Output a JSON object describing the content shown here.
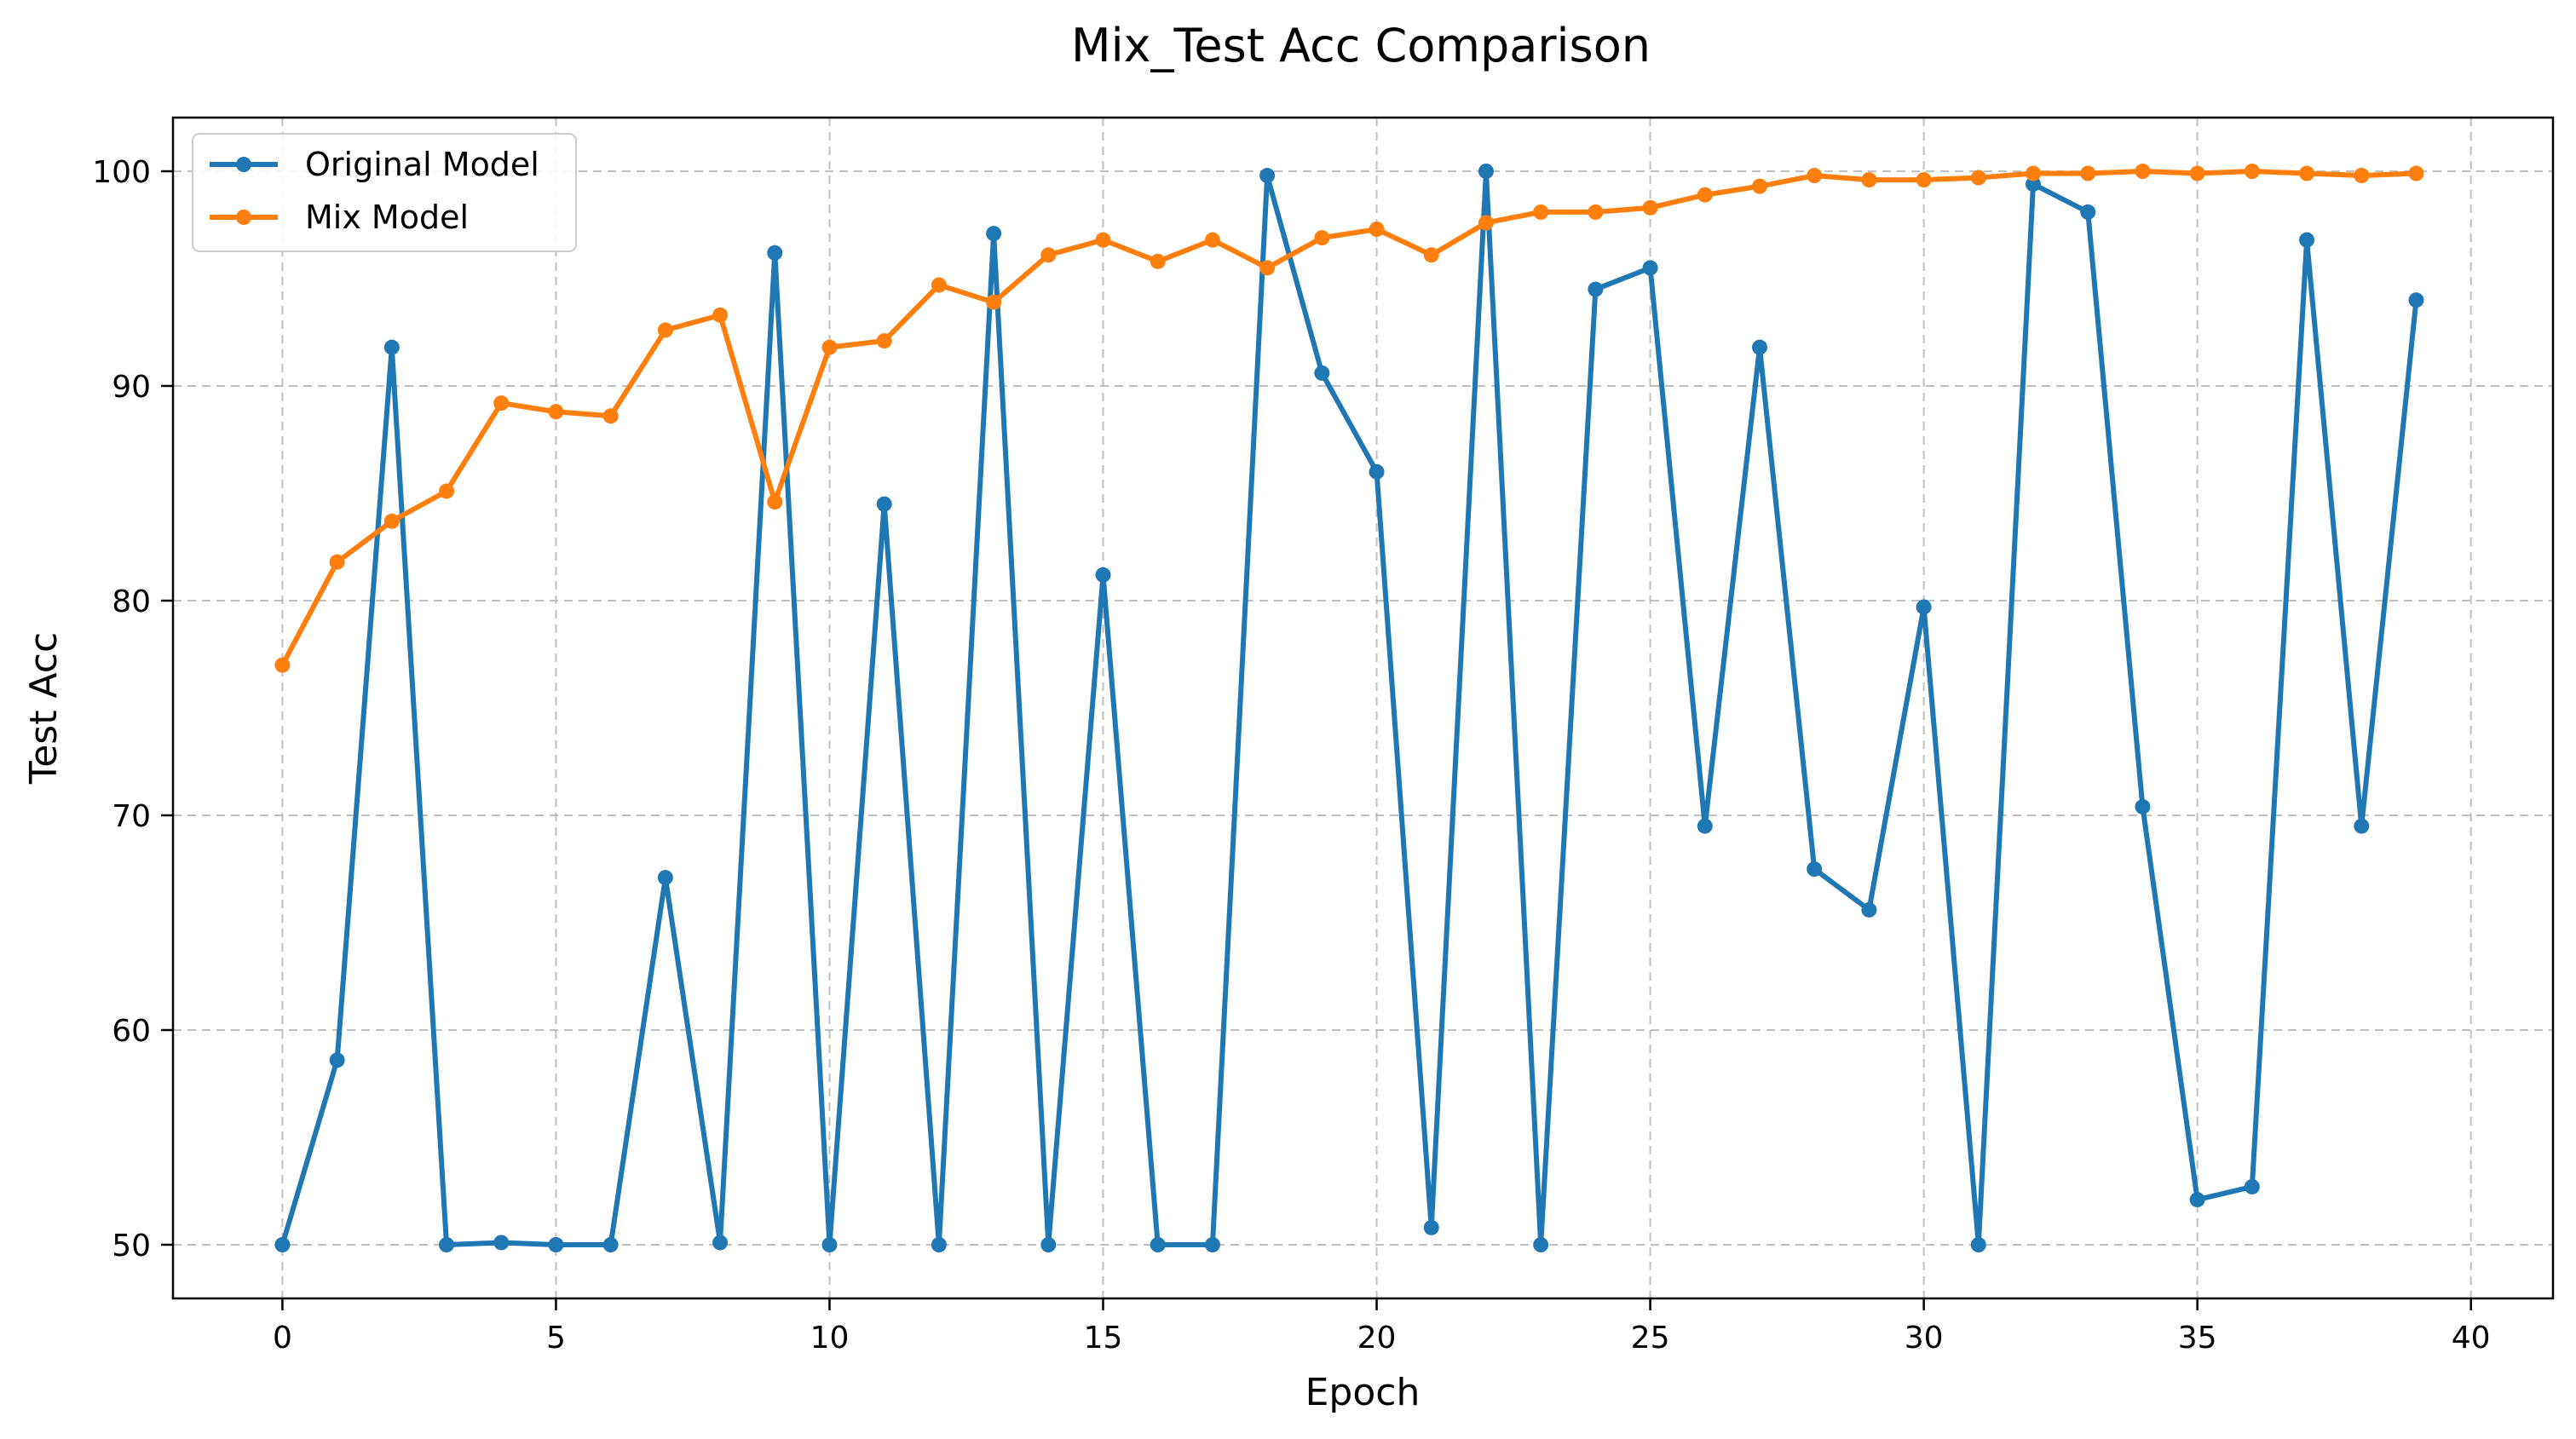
{
  "chart_data": {
    "type": "line",
    "title": "Mix_Test Acc Comparison",
    "xlabel": "Epoch",
    "ylabel": "Test Acc",
    "xlim": [
      -2,
      41.5
    ],
    "ylim": [
      47.5,
      102.5
    ],
    "xticks": [
      0,
      5,
      10,
      15,
      20,
      25,
      30,
      35,
      40
    ],
    "yticks": [
      50,
      60,
      70,
      80,
      90,
      100
    ],
    "grid": true,
    "legend_position": "top-left",
    "x": [
      0,
      1,
      2,
      3,
      4,
      5,
      6,
      7,
      8,
      9,
      10,
      11,
      12,
      13,
      14,
      15,
      16,
      17,
      18,
      19,
      20,
      21,
      22,
      23,
      24,
      25,
      26,
      27,
      28,
      29,
      30,
      31,
      32,
      33,
      34,
      35,
      36,
      37,
      38,
      39
    ],
    "series": [
      {
        "name": "Original Model",
        "color": "#1f77b4",
        "values": [
          50.0,
          58.6,
          91.8,
          50.0,
          50.1,
          50.0,
          50.0,
          67.1,
          50.1,
          96.2,
          50.0,
          84.5,
          50.0,
          97.1,
          50.0,
          81.2,
          50.0,
          50.0,
          99.8,
          90.6,
          86.0,
          50.8,
          100.0,
          50.0,
          94.5,
          95.5,
          69.5,
          91.8,
          67.5,
          65.6,
          79.7,
          50.0,
          99.4,
          98.1,
          70.4,
          52.1,
          52.7,
          96.8,
          69.5,
          94.0
        ]
      },
      {
        "name": "Mix Model",
        "color": "#ff7f0e",
        "values": [
          77.0,
          81.8,
          83.7,
          85.1,
          89.2,
          88.8,
          88.6,
          92.6,
          93.3,
          84.6,
          91.8,
          92.1,
          94.7,
          93.9,
          96.1,
          96.8,
          95.8,
          96.8,
          95.5,
          96.9,
          97.3,
          96.1,
          97.6,
          98.1,
          98.1,
          98.3,
          98.9,
          99.3,
          99.8,
          99.6,
          99.6,
          99.7,
          99.9,
          99.9,
          100.0,
          99.9,
          100.0,
          99.9,
          99.8,
          99.9
        ]
      }
    ]
  }
}
